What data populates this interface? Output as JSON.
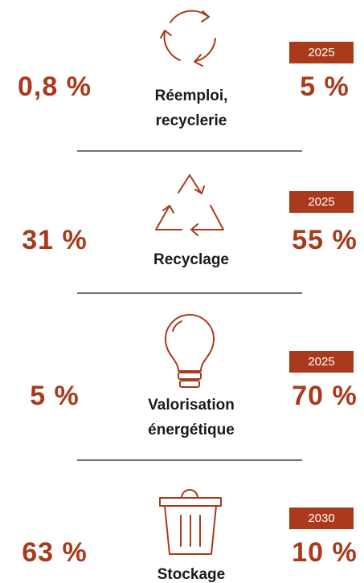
{
  "items": [
    {
      "current": "0,8 %",
      "label": [
        "Réemploi,",
        "recyclerie"
      ],
      "year": "2025",
      "target": "5 %"
    },
    {
      "current": "31 %",
      "label": [
        "Recyclage"
      ],
      "year": "2025",
      "target": "55 %"
    },
    {
      "current": "5 %",
      "label": [
        "Valorisation",
        "énergétique"
      ],
      "year": "2025",
      "target": "70 %"
    },
    {
      "current": "63 %",
      "label": [
        "Stockage"
      ],
      "year": "2030",
      "target": "10 %"
    }
  ]
}
